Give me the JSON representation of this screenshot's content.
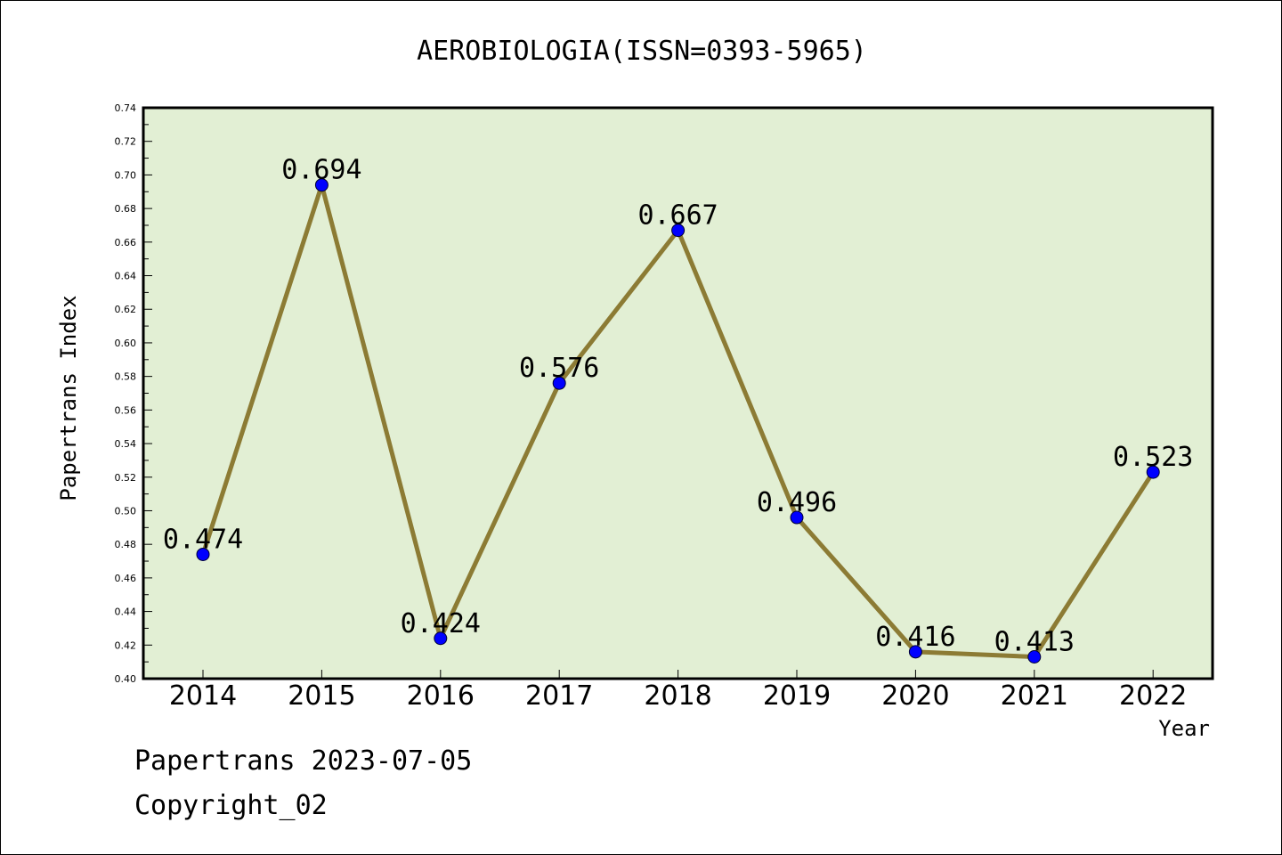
{
  "colors": {
    "plot_background": "#e2efd4",
    "line": "#8c7b34",
    "marker": "#0000ff"
  },
  "chart_data": {
    "type": "line",
    "title": "AEROBIOLOGIA(ISSN=0393-5965)",
    "xlabel": "Year",
    "ylabel": "Papertrans Index",
    "ylim": [
      0.4,
      0.74
    ],
    "y_ticks": [
      "0.40",
      "0.42",
      "0.44",
      "0.46",
      "0.48",
      "0.50",
      "0.52",
      "0.54",
      "0.56",
      "0.58",
      "0.60",
      "0.62",
      "0.64",
      "0.66",
      "0.68",
      "0.70",
      "0.72",
      "0.74"
    ],
    "categories": [
      "2014",
      "2015",
      "2016",
      "2017",
      "2018",
      "2019",
      "2020",
      "2021",
      "2022"
    ],
    "series": [
      {
        "values": [
          0.474,
          0.694,
          0.424,
          0.576,
          0.667,
          0.496,
          0.416,
          0.413,
          0.523
        ],
        "labels": [
          "0.474",
          "0.694",
          "0.424",
          "0.576",
          "0.667",
          "0.496",
          "0.416",
          "0.413",
          "0.523"
        ]
      }
    ],
    "grid": false,
    "legend": "none"
  },
  "footer": {
    "date_line": "Papertrans 2023-07-05",
    "copyright": "Copyright_02"
  }
}
